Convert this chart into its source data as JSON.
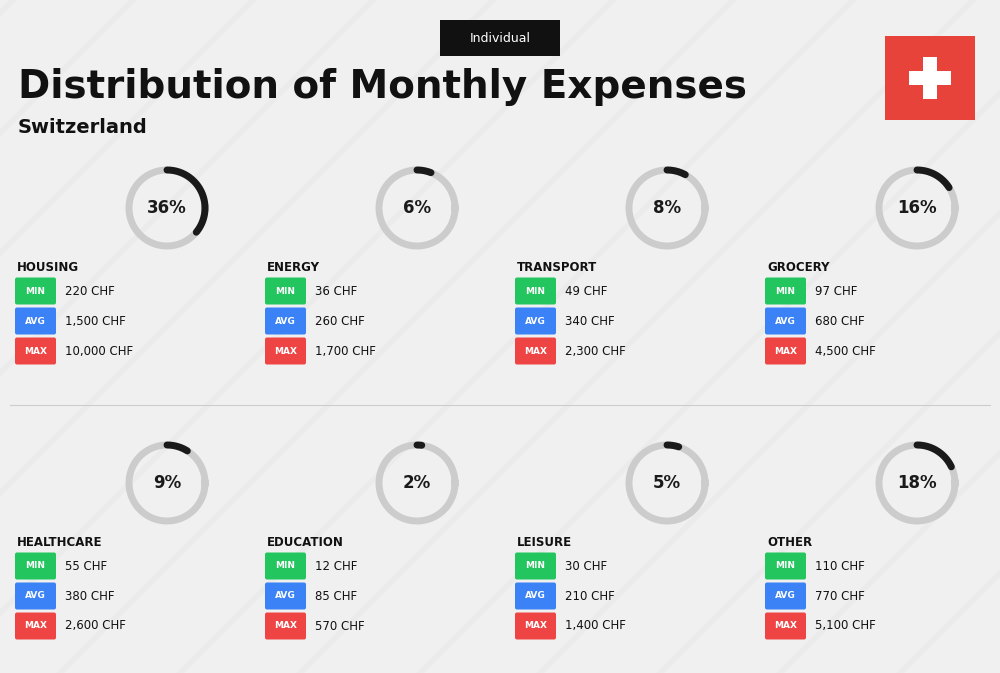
{
  "title": "Distribution of Monthly Expenses",
  "subtitle": "Switzerland",
  "tag": "Individual",
  "bg_color": "#f0f0f0",
  "categories": [
    {
      "name": "HOUSING",
      "pct": 36,
      "min_val": "220 CHF",
      "avg_val": "1,500 CHF",
      "max_val": "10,000 CHF",
      "col": 0,
      "row": 0
    },
    {
      "name": "ENERGY",
      "pct": 6,
      "min_val": "36 CHF",
      "avg_val": "260 CHF",
      "max_val": "1,700 CHF",
      "col": 1,
      "row": 0
    },
    {
      "name": "TRANSPORT",
      "pct": 8,
      "min_val": "49 CHF",
      "avg_val": "340 CHF",
      "max_val": "2,300 CHF",
      "col": 2,
      "row": 0
    },
    {
      "name": "GROCERY",
      "pct": 16,
      "min_val": "97 CHF",
      "avg_val": "680 CHF",
      "max_val": "4,500 CHF",
      "col": 3,
      "row": 0
    },
    {
      "name": "HEALTHCARE",
      "pct": 9,
      "min_val": "55 CHF",
      "avg_val": "380 CHF",
      "max_val": "2,600 CHF",
      "col": 0,
      "row": 1
    },
    {
      "name": "EDUCATION",
      "pct": 2,
      "min_val": "12 CHF",
      "avg_val": "85 CHF",
      "max_val": "570 CHF",
      "col": 1,
      "row": 1
    },
    {
      "name": "LEISURE",
      "pct": 5,
      "min_val": "30 CHF",
      "avg_val": "210 CHF",
      "max_val": "1,400 CHF",
      "col": 2,
      "row": 1
    },
    {
      "name": "OTHER",
      "pct": 18,
      "min_val": "110 CHF",
      "avg_val": "770 CHF",
      "max_val": "5,100 CHF",
      "col": 3,
      "row": 1
    }
  ],
  "min_color": "#22c55e",
  "avg_color": "#3b82f6",
  "max_color": "#ef4444",
  "label_color": "#ffffff",
  "arc_bg_color": "#cccccc",
  "arc_fg_color": "#1a1a1a",
  "swiss_red": "#e8433a",
  "title_color": "#111111",
  "subtitle_color": "#111111",
  "category_name_color": "#111111"
}
